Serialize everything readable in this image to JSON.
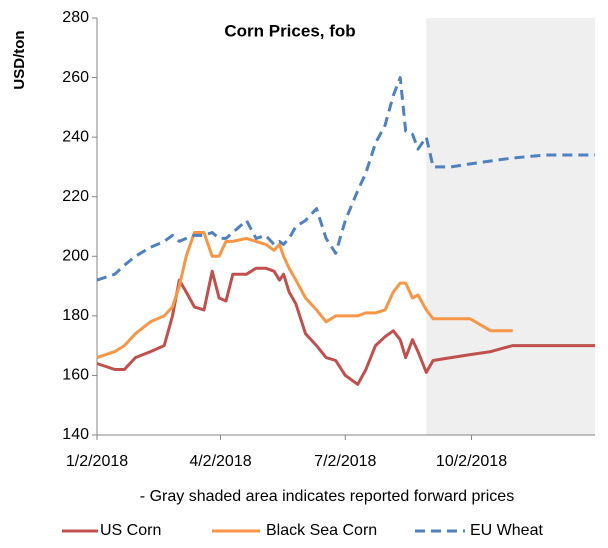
{
  "chart_data": {
    "type": "line",
    "title": "Corn Prices, fob",
    "y_label": "USD/ton",
    "annotation": "- Gray shaded area indicates reported forward prices",
    "shade_from": "8/30/2018",
    "shade_color": "#efefef",
    "x": [
      "1/2/2018",
      "1/15/2018",
      "1/22/2018",
      "1/30/2018",
      "2/10/2018",
      "2/20/2018",
      "2/26/2018",
      "3/3/2018",
      "3/8/2018",
      "3/14/2018",
      "3/21/2018",
      "3/27/2018",
      "4/1/2018",
      "4/6/2018",
      "4/11/2018",
      "4/21/2018",
      "4/28/2018",
      "5/5/2018",
      "5/11/2018",
      "5/15/2018",
      "5/18/2018",
      "5/22/2018",
      "5/27/2018",
      "6/3/2018",
      "6/11/2018",
      "6/18/2018",
      "6/25/2018",
      "7/2/2018",
      "7/11/2018",
      "7/17/2018",
      "7/24/2018",
      "7/31/2018",
      "8/6/2018",
      "8/11/2018",
      "8/15/2018",
      "8/20/2018",
      "8/24/2018",
      "8/30/2018",
      "9/4/2018",
      "9/17/2018",
      "10/1/2018",
      "10/16/2018",
      "11/1/2018",
      "11/25/2018",
      "12/31/2018"
    ],
    "series": [
      {
        "name": "US Corn",
        "color": "#c0504d",
        "dashed": false,
        "values": [
          164,
          162,
          162,
          166,
          168,
          170,
          180,
          192,
          188,
          183,
          182,
          195,
          186,
          185,
          194,
          194,
          196,
          196,
          195,
          192,
          194,
          188,
          184,
          174,
          170,
          166,
          165,
          160,
          157,
          162,
          170,
          173,
          175,
          172,
          166,
          172,
          168,
          161,
          165,
          166,
          167,
          168,
          170,
          170,
          170
        ]
      },
      {
        "name": "Black Sea Corn",
        "color": "#f79646",
        "dashed": false,
        "values": [
          166,
          168,
          170,
          174,
          178,
          180,
          183,
          190,
          200,
          208,
          208,
          200,
          200,
          205,
          205,
          206,
          205,
          204,
          202,
          204,
          200,
          196,
          192,
          186,
          182,
          178,
          180,
          180,
          180,
          181,
          181,
          182,
          188,
          191,
          191,
          186,
          187,
          182,
          179,
          179,
          179,
          175,
          175,
          null,
          null
        ]
      },
      {
        "name": "EU Wheat",
        "color": "#4f81bd",
        "dashed": true,
        "values": [
          192,
          194,
          197,
          200,
          203,
          205,
          207,
          205,
          206,
          207,
          207,
          208,
          206,
          206,
          208,
          212,
          206,
          207,
          204,
          205,
          204,
          206,
          210,
          212,
          216,
          206,
          201,
          212,
          222,
          228,
          238,
          244,
          254,
          260,
          242,
          241,
          236,
          240,
          230,
          230,
          231,
          232,
          233,
          234,
          234
        ]
      }
    ],
    "xlim": [
      "1/2/2018",
      "12/31/2018"
    ],
    "xticks": [
      "1/2/2018",
      "4/2/2018",
      "7/2/2018",
      "10/2/2018"
    ],
    "ylim": [
      140,
      280
    ],
    "yticks": [
      140,
      160,
      180,
      200,
      220,
      240,
      260,
      280
    ],
    "grid": false,
    "legend": "bottom"
  }
}
